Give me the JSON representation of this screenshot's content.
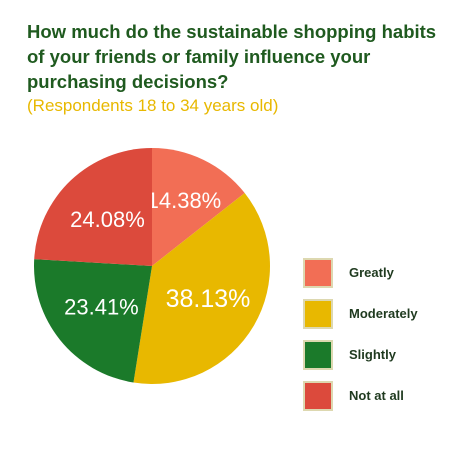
{
  "header": {
    "title_lines": [
      "How much do the sustainable shopping habits",
      "of your friends or family influence your",
      "purchasing decisions?"
    ],
    "subtitle": "(Respondents 18 to 34 years old)"
  },
  "chart_data": {
    "type": "pie",
    "title": "How much do the sustainable shopping habits of your friends or family influence your purchasing decisions?",
    "subtitle": "(Respondents 18 to 34 years old)",
    "legend_position": "right",
    "slices": [
      {
        "label": "Greatly",
        "value": 14.38,
        "display": "14.38%",
        "color": "#f26e55"
      },
      {
        "label": "Moderately",
        "value": 38.13,
        "display": "38.13%",
        "color": "#e8b800"
      },
      {
        "label": "Slightly",
        "value": 23.41,
        "display": "23.41%",
        "color": "#1b7a2a"
      },
      {
        "label": "Not at all",
        "value": 24.08,
        "display": "24.08%",
        "color": "#dc4a3c"
      }
    ]
  }
}
